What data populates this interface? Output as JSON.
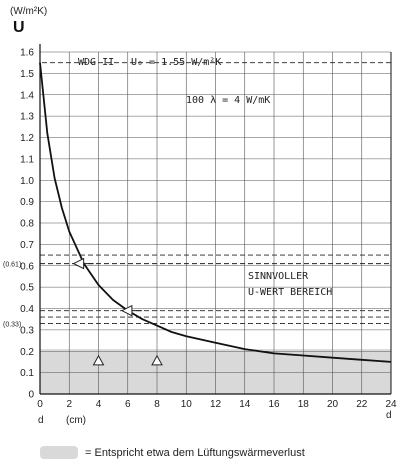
{
  "chart_data": {
    "type": "line",
    "y_unit": "(W/m²K)",
    "y_symbol": "U",
    "x_label_symbol": "d",
    "x_unit": "(cm)",
    "x_end_label": "d",
    "xlim": [
      0,
      24
    ],
    "ylim": [
      0,
      1.6
    ],
    "x_ticks": [
      "0",
      "2",
      "4",
      "6",
      "8",
      "10",
      "12",
      "14",
      "16",
      "18",
      "20",
      "22",
      "24"
    ],
    "y_ticks": [
      "0",
      "0.1",
      "0.2",
      "0.3",
      "0.4",
      "0.5",
      "0.6",
      "0.7",
      "0.8",
      "0.9",
      "1.0",
      "1.1",
      "1.2",
      "1.3",
      "1.4",
      "1.5",
      "1.6"
    ],
    "grid": true,
    "series": [
      {
        "x": [
          0,
          0.5,
          1,
          1.5,
          2,
          3,
          4,
          5,
          6,
          7,
          8,
          9,
          10,
          12,
          14,
          16,
          18,
          20,
          22,
          24
        ],
        "y": [
          1.55,
          1.22,
          1.01,
          0.87,
          0.76,
          0.61,
          0.51,
          0.44,
          0.39,
          0.35,
          0.32,
          0.29,
          0.27,
          0.24,
          0.21,
          0.19,
          0.18,
          0.17,
          0.16,
          0.15
        ]
      }
    ],
    "wdg_label": "WDG II",
    "u0_label": "U₀ = 1.55 W/m²K",
    "lambda_label": "100 λ = 4 W/mK",
    "ref_lines": [
      {
        "y": 0.65,
        "label": ""
      },
      {
        "y": 0.61,
        "label": "(0.61)"
      },
      {
        "y": 0.39,
        "label": ""
      },
      {
        "y": 0.36,
        "label": ""
      },
      {
        "y": 0.33,
        "label": "(0.33)"
      }
    ],
    "arrows": [
      {
        "x": 2.3,
        "y": 0.61
      },
      {
        "x": 5.6,
        "y": 0.39
      }
    ],
    "triangles": [
      {
        "x": 4,
        "y": 0.155
      },
      {
        "x": 8,
        "y": 0.155
      }
    ],
    "region_label_line1": "SINNVOLLER",
    "region_label_line2": "U-WERT BEREICH",
    "shaded_band": {
      "y_from": 0,
      "y_to": 0.21,
      "color": "#d9d9d9"
    },
    "legend": {
      "swatch_color": "#d9d9d9",
      "text": "= Entspricht etwa dem Lüftungswärmeverlust"
    }
  }
}
